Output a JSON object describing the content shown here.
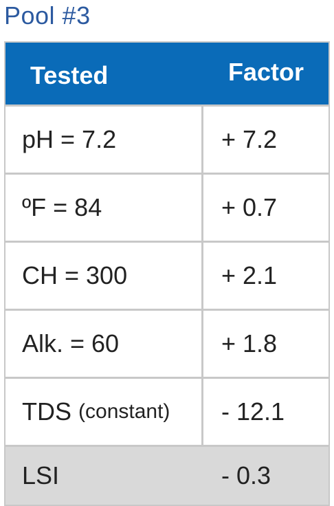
{
  "title": "Pool #3",
  "columns": {
    "tested": "Tested",
    "factor": "Factor"
  },
  "rows": [
    {
      "tested": "pH = 7.2",
      "factor": "+ 7.2"
    },
    {
      "tested": "ºF = 84",
      "factor": "+ 0.7"
    },
    {
      "tested": "CH = 300",
      "factor": "+ 2.1"
    },
    {
      "tested": "Alk. = 60",
      "factor": "+ 1.8"
    },
    {
      "tested_main": "TDS",
      "tested_note": "(constant)",
      "factor": "- 12.1"
    }
  ],
  "total": {
    "label": "LSI",
    "factor": "- 0.3"
  },
  "colors": {
    "title": "#2c5aa0",
    "header_bg": "#0a6bb8",
    "total_bg": "#d9d9d9",
    "grid": "#c8c8c8"
  }
}
